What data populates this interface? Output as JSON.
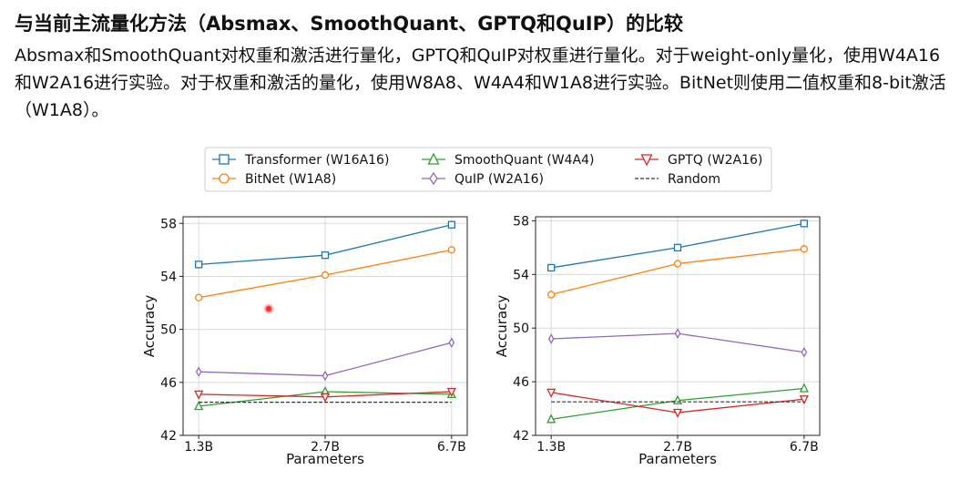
{
  "slide": {
    "title": "与当前主流量化方法（Absmax、SmoothQuant、GPTQ和QuIP）的比较",
    "description": "Absmax和SmoothQuant对权重和激活进行量化，GPTQ和QuIP对权重进行量化。对于weight-only量化，使用W4A16和W2A16进行实验。对于权重和激活的量化，使用W8A8、W4A4和W1A8进行实验。BitNet则使用二值权重和8-bit激活（W1A8）。"
  },
  "legend": {
    "entries": [
      {
        "label": "Transformer (W16A16)",
        "color": "#1f77b4",
        "marker": "square"
      },
      {
        "label": "BitNet (W1A8)",
        "color": "#ff7f0e",
        "marker": "circle"
      },
      {
        "label": "SmoothQuant (W4A4)",
        "color": "#2ca02c",
        "marker": "triangle-up"
      },
      {
        "label": "QuIP (W2A16)",
        "color": "#9467bd",
        "marker": "diamond"
      },
      {
        "label": "GPTQ (W2A16)",
        "color": "#d62728",
        "marker": "triangle-down"
      },
      {
        "label": "Random",
        "color": "#333333",
        "marker": "dashed"
      }
    ]
  },
  "chart_data": [
    {
      "type": "line",
      "categories": [
        "1.3B",
        "2.7B",
        "6.7B"
      ],
      "xlabel": "Parameters",
      "ylabel": "Accuracy",
      "ylim": [
        42,
        58.5
      ],
      "yticks": [
        42,
        46,
        50,
        54,
        58
      ],
      "grid": true,
      "series": [
        {
          "name": "Transformer (W16A16)",
          "values": [
            54.9,
            55.6,
            57.9
          ]
        },
        {
          "name": "BitNet (W1A8)",
          "values": [
            52.4,
            54.1,
            56.0
          ]
        },
        {
          "name": "SmoothQuant (W4A4)",
          "values": [
            44.2,
            45.3,
            45.1
          ]
        },
        {
          "name": "QuIP (W2A16)",
          "values": [
            46.8,
            46.5,
            49.0
          ]
        },
        {
          "name": "GPTQ (W2A16)",
          "values": [
            45.1,
            44.9,
            45.3
          ]
        },
        {
          "name": "Random",
          "values": [
            44.5,
            44.5,
            44.5
          ]
        }
      ]
    },
    {
      "type": "line",
      "categories": [
        "1.3B",
        "2.7B",
        "6.7B"
      ],
      "xlabel": "Parameters",
      "ylabel": "Accuracy",
      "ylim": [
        42,
        58.3
      ],
      "yticks": [
        42,
        46,
        50,
        54,
        58
      ],
      "grid": true,
      "series": [
        {
          "name": "Transformer (W16A16)",
          "values": [
            54.5,
            56.0,
            57.8
          ]
        },
        {
          "name": "BitNet (W1A8)",
          "values": [
            52.5,
            54.8,
            55.9
          ]
        },
        {
          "name": "SmoothQuant (W4A4)",
          "values": [
            43.2,
            44.6,
            45.5
          ]
        },
        {
          "name": "QuIP (W2A16)",
          "values": [
            49.2,
            49.6,
            48.2
          ]
        },
        {
          "name": "GPTQ (W2A16)",
          "values": [
            45.2,
            43.7,
            44.7
          ]
        },
        {
          "name": "Random",
          "values": [
            44.5,
            44.5,
            44.5
          ]
        }
      ]
    }
  ]
}
